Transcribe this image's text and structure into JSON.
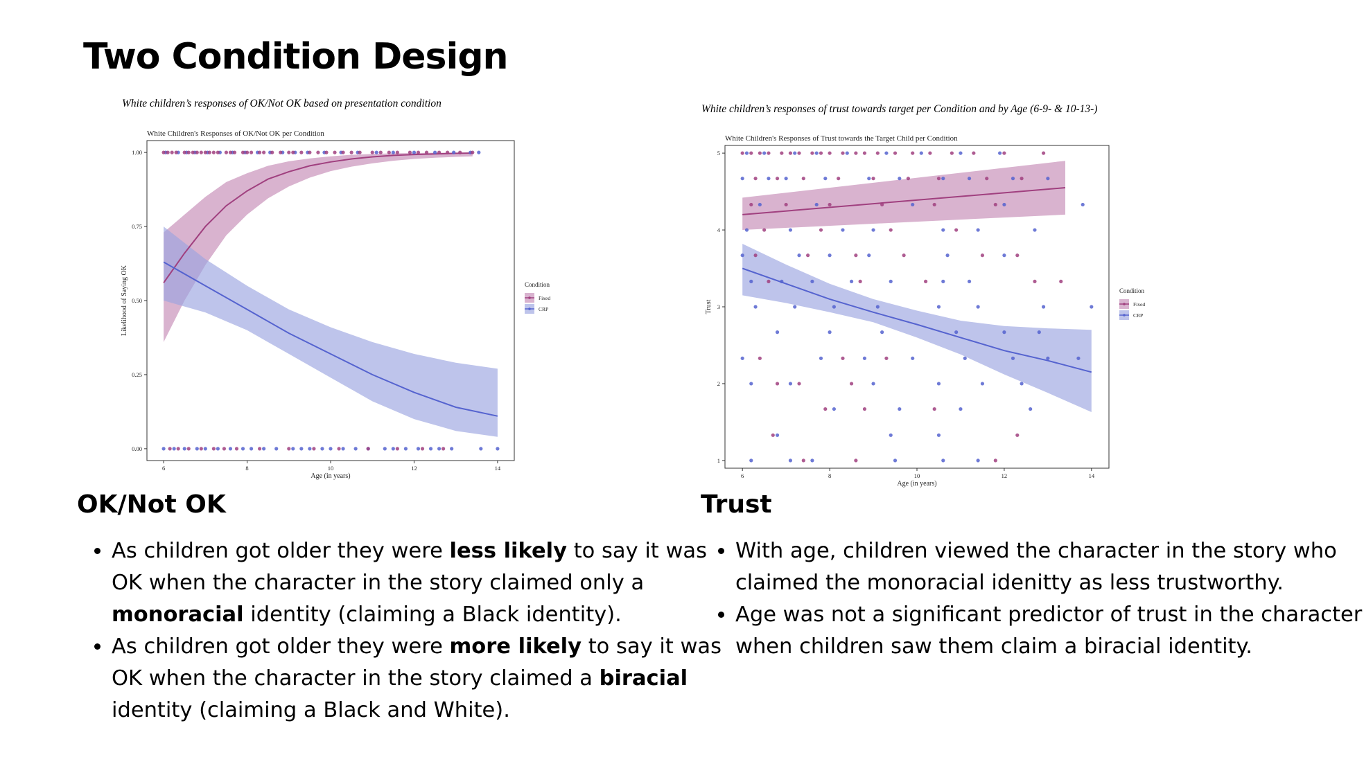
{
  "title": "Two Condition Design",
  "left": {
    "caption": "White children’s responses of OK/Not OK based on presentation condition",
    "heading": "OK/Not OK",
    "bullets": [
      {
        "pre": "As children got older they were ",
        "bold": "less likely",
        "mid": " to say it was OK when the character in the story claimed only a ",
        "bold2": "monoracial",
        "post": " identity (claiming a Black identity)."
      },
      {
        "pre": "As children got older they were ",
        "bold": "more likely",
        "mid": " to say it was OK when the character in the story claimed a ",
        "bold2": "biracial",
        "post": " identity (claiming a Black and White)."
      }
    ]
  },
  "right": {
    "caption": "White children’s responses of trust towards target per Condition and by Age (6-9- & 10-13-)",
    "heading": "Trust",
    "bullets": [
      {
        "text": "With age, children viewed the character in the story who claimed the monoracial idenitty as less trustworthy."
      },
      {
        "text": "Age was not a significant predictor of trust in the character when children saw them claim a biracial identity."
      }
    ]
  },
  "chart_data": [
    {
      "type": "scatter",
      "title": "White Children's Responses of OK/Not OK per Condition",
      "xlabel": "Age (in years)",
      "ylabel": "Likelihood of Saying OK",
      "xlim": [
        5.6,
        14.4
      ],
      "ylim": [
        -0.04,
        1.04
      ],
      "xticks": [
        "6",
        "8",
        "10",
        "12",
        "14"
      ],
      "yticks": [
        "0.00",
        "0.25",
        "0.50",
        "0.75",
        "1.00"
      ],
      "grid": false,
      "legend_title": "Condition",
      "legend_placement": "right",
      "series": [
        {
          "name": "Fixed",
          "color": "#a0407f",
          "band_color": "#c58ab6",
          "fit": {
            "x": [
              6,
              6.5,
              7,
              7.5,
              8,
              8.5,
              9,
              9.5,
              10,
              10.5,
              11,
              11.5,
              12,
              12.5,
              13,
              13.4
            ],
            "y": [
              0.56,
              0.66,
              0.75,
              0.82,
              0.87,
              0.91,
              0.935,
              0.955,
              0.968,
              0.978,
              0.985,
              0.99,
              0.993,
              0.995,
              0.997,
              0.998
            ],
            "lower": [
              0.36,
              0.5,
              0.62,
              0.72,
              0.79,
              0.845,
              0.885,
              0.915,
              0.937,
              0.952,
              0.963,
              0.972,
              0.978,
              0.982,
              0.985,
              0.987
            ],
            "upper": [
              0.73,
              0.79,
              0.85,
              0.9,
              0.93,
              0.955,
              0.97,
              0.98,
              0.987,
              0.992,
              0.995,
              0.997,
              0.998,
              0.999,
              0.999,
              0.999
            ]
          }
        },
        {
          "name": "CRP",
          "color": "#5563cf",
          "band_color": "#9ba4e0",
          "fit": {
            "x": [
              6,
              7,
              8,
              9,
              10,
              11,
              12,
              13,
              14
            ],
            "y": [
              0.63,
              0.55,
              0.47,
              0.39,
              0.32,
              0.25,
              0.19,
              0.14,
              0.11
            ],
            "lower": [
              0.5,
              0.46,
              0.4,
              0.32,
              0.24,
              0.16,
              0.1,
              0.06,
              0.04
            ],
            "upper": [
              0.75,
              0.64,
              0.55,
              0.47,
              0.41,
              0.36,
              0.32,
              0.29,
              0.27
            ]
          }
        }
      ],
      "points_fixed_y1": [
        6.0,
        6.1,
        6.2,
        6.3,
        6.5,
        6.6,
        6.7,
        6.8,
        6.9,
        7.0,
        7.1,
        7.2,
        7.3,
        7.5,
        7.6,
        7.7,
        7.9,
        8.0,
        8.1,
        8.3,
        8.4,
        8.6,
        8.8,
        9.0,
        9.1,
        9.3,
        9.5,
        9.7,
        9.9,
        10.1,
        10.3,
        10.5,
        10.7,
        11.0,
        11.2,
        11.4,
        11.6,
        11.9,
        12.1,
        12.3,
        12.6,
        12.8,
        13.1,
        13.4
      ],
      "points_crp_y1": [
        6.05,
        6.35,
        6.55,
        6.75,
        7.05,
        7.35,
        7.65,
        7.95,
        8.25,
        8.55,
        8.85,
        9.15,
        9.45,
        9.85,
        10.25,
        10.65,
        11.1,
        11.5,
        12.0,
        12.5,
        12.95,
        13.35,
        13.55
      ],
      "points_fixed_y0": [
        6.15,
        6.35,
        6.6,
        6.9,
        7.2,
        7.45,
        7.75,
        8.3,
        9.0,
        9.6,
        10.2,
        10.9,
        11.6,
        12.2,
        12.7
      ],
      "points_crp_y0": [
        6.0,
        6.25,
        6.5,
        6.8,
        7.0,
        7.3,
        7.6,
        7.9,
        8.1,
        8.4,
        8.7,
        9.1,
        9.3,
        9.5,
        9.8,
        10.0,
        10.3,
        10.6,
        10.9,
        11.3,
        11.5,
        11.8,
        12.1,
        12.4,
        12.6,
        12.9,
        13.6,
        14.0
      ]
    },
    {
      "type": "scatter",
      "title": "White Children's Responses of Trust towards the Target Child per Condition",
      "xlabel": "Age (in years)",
      "ylabel": "Trust",
      "xlim": [
        5.6,
        14.4
      ],
      "ylim": [
        0.9,
        5.1
      ],
      "xticks": [
        "6",
        "8",
        "10",
        "12",
        "14"
      ],
      "yticks": [
        "1",
        "2",
        "3",
        "4",
        "5"
      ],
      "grid": false,
      "legend_title": "Condition",
      "legend_placement": "right",
      "series": [
        {
          "name": "Fixed",
          "color": "#a0407f",
          "band_color": "#c58ab6",
          "fit": {
            "x": [
              6,
              13.4
            ],
            "y": [
              4.2,
              4.55
            ],
            "lower": [
              4.0,
              4.2
            ],
            "upper": [
              4.42,
              4.9
            ]
          }
        },
        {
          "name": "CRP",
          "color": "#5563cf",
          "band_color": "#9ba4e0",
          "fit": {
            "x": [
              6,
              7,
              8,
              9,
              10,
              11,
              12,
              13,
              14
            ],
            "y": [
              3.5,
              3.3,
              3.1,
              2.93,
              2.77,
              2.6,
              2.43,
              2.3,
              2.15
            ],
            "lower": [
              3.15,
              3.05,
              2.93,
              2.8,
              2.6,
              2.38,
              2.12,
              1.88,
              1.63
            ],
            "upper": [
              3.82,
              3.55,
              3.3,
              3.1,
              2.95,
              2.82,
              2.75,
              2.72,
              2.7
            ]
          }
        }
      ],
      "points_fixed": [
        [
          6.0,
          5
        ],
        [
          6.2,
          5
        ],
        [
          6.4,
          5
        ],
        [
          6.6,
          5
        ],
        [
          6.9,
          5
        ],
        [
          7.1,
          5
        ],
        [
          7.3,
          5
        ],
        [
          7.6,
          5
        ],
        [
          7.8,
          5
        ],
        [
          8.0,
          5
        ],
        [
          8.3,
          5
        ],
        [
          8.6,
          5
        ],
        [
          8.8,
          5
        ],
        [
          9.1,
          5
        ],
        [
          9.5,
          5
        ],
        [
          9.9,
          5
        ],
        [
          10.3,
          5
        ],
        [
          10.8,
          5
        ],
        [
          11.3,
          5
        ],
        [
          12.0,
          5
        ],
        [
          12.9,
          5
        ],
        [
          6.3,
          4.67
        ],
        [
          6.8,
          4.67
        ],
        [
          7.4,
          4.67
        ],
        [
          8.2,
          4.67
        ],
        [
          9.0,
          4.67
        ],
        [
          9.8,
          4.67
        ],
        [
          10.5,
          4.67
        ],
        [
          11.6,
          4.67
        ],
        [
          12.4,
          4.67
        ],
        [
          6.2,
          4.33
        ],
        [
          7.0,
          4.33
        ],
        [
          8.0,
          4.33
        ],
        [
          9.2,
          4.33
        ],
        [
          10.4,
          4.33
        ],
        [
          11.8,
          4.33
        ],
        [
          6.5,
          4
        ],
        [
          7.8,
          4
        ],
        [
          9.4,
          4
        ],
        [
          10.9,
          4
        ],
        [
          6.3,
          3.67
        ],
        [
          7.5,
          3.67
        ],
        [
          8.6,
          3.67
        ],
        [
          9.7,
          3.67
        ],
        [
          11.5,
          3.67
        ],
        [
          12.3,
          3.67
        ],
        [
          6.6,
          3.33
        ],
        [
          8.7,
          3.33
        ],
        [
          10.2,
          3.33
        ],
        [
          12.7,
          3.33
        ],
        [
          13.3,
          3.33
        ],
        [
          6.4,
          2.33
        ],
        [
          8.3,
          2.33
        ],
        [
          9.3,
          2.33
        ],
        [
          6.8,
          2
        ],
        [
          7.3,
          2
        ],
        [
          8.5,
          2
        ],
        [
          7.9,
          1.67
        ],
        [
          8.8,
          1.67
        ],
        [
          10.4,
          1.67
        ],
        [
          6.7,
          1.33
        ],
        [
          12.3,
          1.33
        ],
        [
          7.4,
          1
        ],
        [
          8.6,
          1
        ],
        [
          11.8,
          1
        ]
      ],
      "points_crp": [
        [
          6.1,
          5
        ],
        [
          6.5,
          5
        ],
        [
          7.2,
          5
        ],
        [
          7.7,
          5
        ],
        [
          8.4,
          5
        ],
        [
          9.3,
          5
        ],
        [
          10.1,
          5
        ],
        [
          11.0,
          5
        ],
        [
          11.9,
          5
        ],
        [
          6.0,
          4.67
        ],
        [
          6.6,
          4.67
        ],
        [
          7.0,
          4.67
        ],
        [
          7.9,
          4.67
        ],
        [
          8.9,
          4.67
        ],
        [
          9.6,
          4.67
        ],
        [
          10.6,
          4.67
        ],
        [
          11.2,
          4.67
        ],
        [
          12.2,
          4.67
        ],
        [
          13.0,
          4.67
        ],
        [
          6.4,
          4.33
        ],
        [
          7.7,
          4.33
        ],
        [
          9.9,
          4.33
        ],
        [
          12.0,
          4.33
        ],
        [
          13.8,
          4.33
        ],
        [
          6.1,
          4
        ],
        [
          7.1,
          4
        ],
        [
          8.3,
          4
        ],
        [
          9.0,
          4
        ],
        [
          10.6,
          4
        ],
        [
          11.4,
          4
        ],
        [
          12.7,
          4
        ],
        [
          6.0,
          3.67
        ],
        [
          7.3,
          3.67
        ],
        [
          8.0,
          3.67
        ],
        [
          8.9,
          3.67
        ],
        [
          10.7,
          3.67
        ],
        [
          12.0,
          3.67
        ],
        [
          6.2,
          3.33
        ],
        [
          6.9,
          3.33
        ],
        [
          7.6,
          3.33
        ],
        [
          8.5,
          3.33
        ],
        [
          9.4,
          3.33
        ],
        [
          10.6,
          3.33
        ],
        [
          11.2,
          3.33
        ],
        [
          6.3,
          3
        ],
        [
          7.2,
          3
        ],
        [
          8.1,
          3
        ],
        [
          9.1,
          3
        ],
        [
          10.5,
          3
        ],
        [
          11.4,
          3
        ],
        [
          12.9,
          3
        ],
        [
          14.0,
          3
        ],
        [
          6.8,
          2.67
        ],
        [
          8.0,
          2.67
        ],
        [
          9.2,
          2.67
        ],
        [
          10.9,
          2.67
        ],
        [
          12.0,
          2.67
        ],
        [
          12.8,
          2.67
        ],
        [
          6.0,
          2.33
        ],
        [
          7.8,
          2.33
        ],
        [
          8.8,
          2.33
        ],
        [
          9.9,
          2.33
        ],
        [
          11.1,
          2.33
        ],
        [
          12.2,
          2.33
        ],
        [
          13.0,
          2.33
        ],
        [
          13.7,
          2.33
        ],
        [
          6.2,
          2
        ],
        [
          7.1,
          2
        ],
        [
          9.0,
          2
        ],
        [
          10.5,
          2
        ],
        [
          11.5,
          2
        ],
        [
          12.4,
          2
        ],
        [
          8.1,
          1.67
        ],
        [
          9.6,
          1.67
        ],
        [
          11.0,
          1.67
        ],
        [
          12.6,
          1.67
        ],
        [
          6.8,
          1.33
        ],
        [
          9.4,
          1.33
        ],
        [
          10.5,
          1.33
        ],
        [
          6.2,
          1
        ],
        [
          7.1,
          1
        ],
        [
          7.6,
          1
        ],
        [
          9.5,
          1
        ],
        [
          10.6,
          1
        ],
        [
          11.4,
          1
        ]
      ]
    }
  ]
}
